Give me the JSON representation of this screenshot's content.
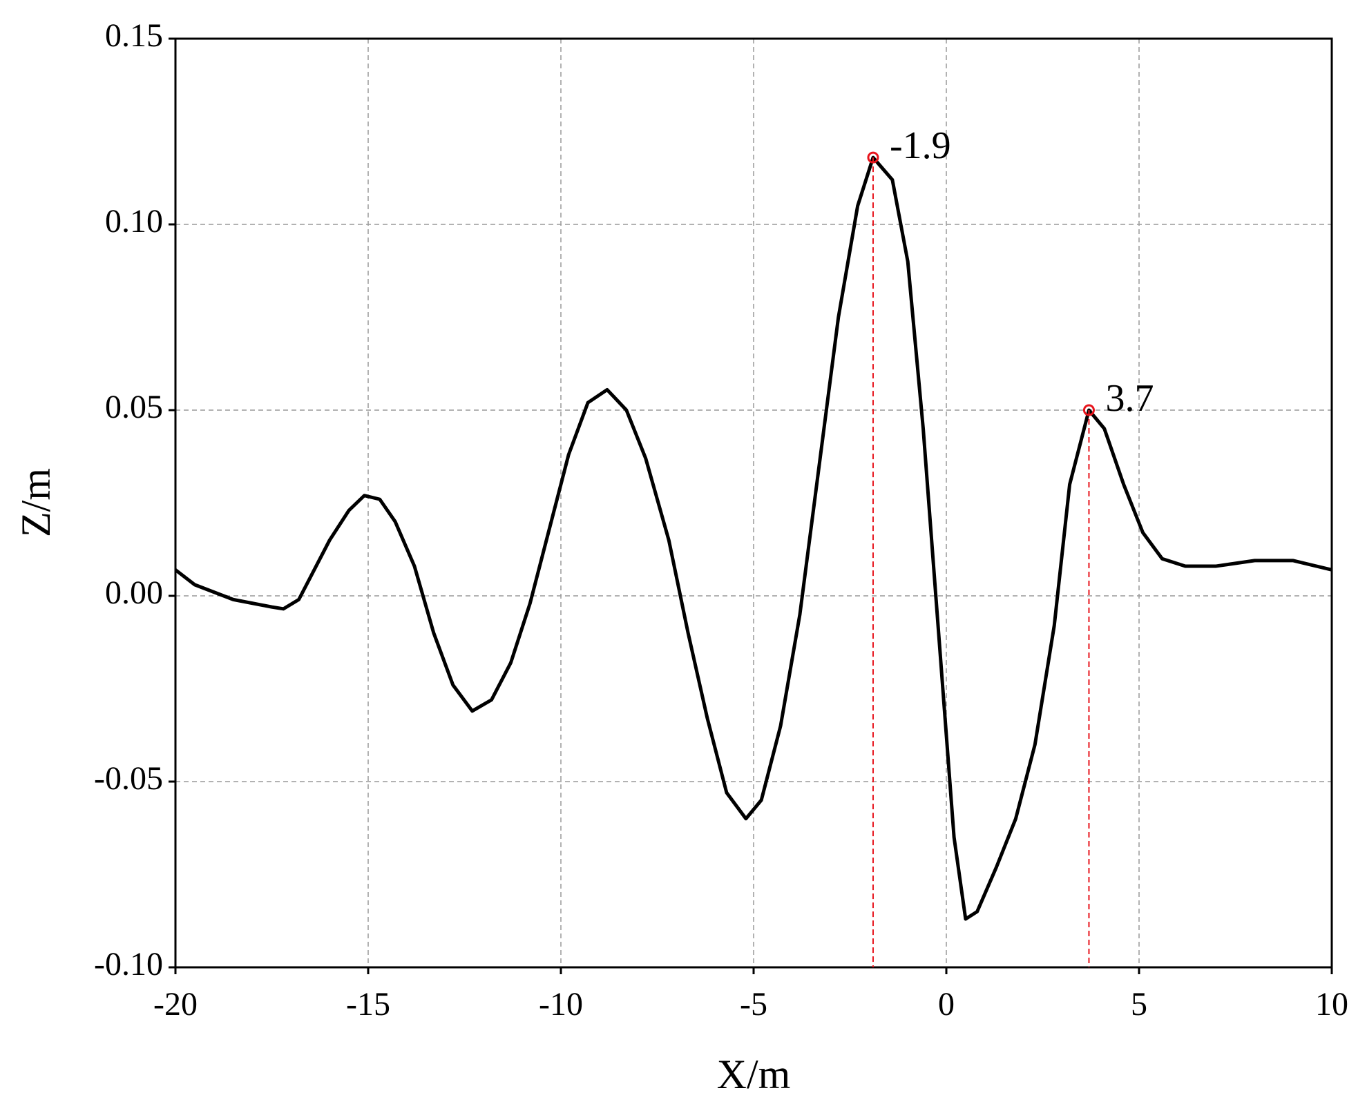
{
  "chart_data": {
    "type": "line",
    "x_label": "X/m",
    "y_label": "Z/m",
    "xlim": [
      -20,
      10
    ],
    "ylim": [
      -0.1,
      0.15
    ],
    "xticks": [
      -20,
      -15,
      -10,
      -5,
      0,
      5,
      10
    ],
    "yticks": [
      {
        "value": -0.1,
        "label": "-0.10"
      },
      {
        "value": -0.05,
        "label": "-0.05"
      },
      {
        "value": 0,
        "label": "0.00"
      },
      {
        "value": 0.05,
        "label": "0.05"
      },
      {
        "value": 0.1,
        "label": "0.10"
      },
      {
        "value": 0.15,
        "label": "0.15"
      }
    ],
    "grid": true,
    "series": [
      {
        "color": "#000000",
        "x": [
          -20,
          -19.5,
          -19,
          -18.5,
          -18,
          -17.5,
          -17.2,
          -16.8,
          -16.5,
          -16,
          -15.5,
          -15.1,
          -14.7,
          -14.3,
          -13.8,
          -13.3,
          -12.8,
          -12.3,
          -11.8,
          -11.3,
          -10.8,
          -10.3,
          -9.8,
          -9.3,
          -8.8,
          -8.3,
          -7.8,
          -7.2,
          -6.7,
          -6.2,
          -5.7,
          -5.2,
          -4.8,
          -4.3,
          -3.8,
          -3.3,
          -2.8,
          -2.3,
          -1.9,
          -1.4,
          -1.0,
          -0.6,
          -0.2,
          0.2,
          0.5,
          0.8,
          1.3,
          1.8,
          2.3,
          2.8,
          3.2,
          3.7,
          4.1,
          4.6,
          5.1,
          5.6,
          6.2,
          7,
          8,
          9,
          10
        ],
        "values": [
          0.007,
          0.003,
          0.001,
          -0.001,
          -0.002,
          -0.003,
          -0.0035,
          -0.001,
          0.005,
          0.015,
          0.023,
          0.027,
          0.026,
          0.02,
          0.008,
          -0.01,
          -0.024,
          -0.031,
          -0.028,
          -0.018,
          -0.002,
          0.018,
          0.038,
          0.052,
          0.0555,
          0.05,
          0.037,
          0.015,
          -0.01,
          -0.033,
          -0.053,
          -0.06,
          -0.055,
          -0.035,
          -0.005,
          0.035,
          0.075,
          0.105,
          0.118,
          0.112,
          0.09,
          0.045,
          -0.01,
          -0.065,
          -0.087,
          -0.085,
          -0.073,
          -0.06,
          -0.04,
          -0.008,
          0.03,
          0.05,
          0.045,
          0.03,
          0.017,
          0.01,
          0.008,
          0.008,
          0.0095,
          0.0095,
          0.007
        ]
      }
    ],
    "annotations": [
      {
        "x": -1.9,
        "y": 0.118,
        "label": "-1.9",
        "color": "#e8141c"
      },
      {
        "x": 3.7,
        "y": 0.05,
        "label": "3.7",
        "color": "#e8141c"
      }
    ]
  }
}
